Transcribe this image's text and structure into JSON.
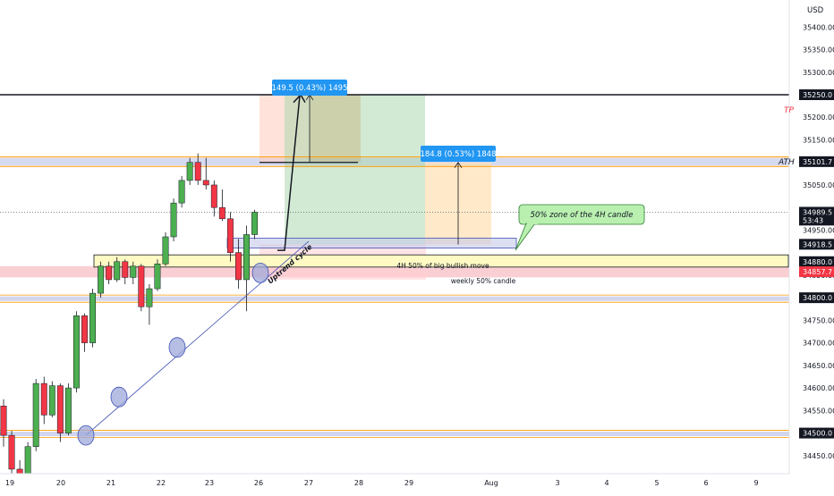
{
  "chart_data": {
    "type": "candlestick",
    "currency": "USD",
    "price_axis": {
      "min": 34410,
      "max": 35460,
      "ticks": [
        35400,
        35350,
        35300,
        35250,
        35200,
        35150,
        35050,
        34950,
        34850,
        34750,
        34700,
        34650,
        34600,
        34550,
        34450
      ],
      "labels": {
        "highlighted": [
          {
            "text": "35250.1",
            "value": 35250.1,
            "color": "#f23645"
          },
          {
            "text": "35250.0",
            "value": 35250.0,
            "color": "#131722"
          },
          {
            "text": "35101.7",
            "value": 35101.7,
            "color": "#131722"
          },
          {
            "text": "34989.5",
            "value": 34989.5,
            "color": "#131722"
          },
          {
            "text": "53:43",
            "value": 34972,
            "color": "#131722"
          },
          {
            "text": "34918.5",
            "value": 34918.5,
            "color": "#131722"
          },
          {
            "text": "34880.0",
            "value": 34880.0,
            "color": "#131722"
          },
          {
            "text": "34857.7",
            "value": 34857.7,
            "color": "#f23645"
          },
          {
            "text": "34800.0",
            "value": 34800.0,
            "color": "#131722"
          },
          {
            "text": "34500.0",
            "value": 34500.0,
            "color": "#131722"
          }
        ]
      }
    },
    "time_axis": {
      "labels": [
        "19",
        "20",
        "21",
        "22",
        "23",
        "26",
        "27",
        "28",
        "29",
        "Aug",
        "3",
        "4",
        "5",
        "6",
        "9"
      ],
      "day_positions": [
        0,
        1,
        2,
        3,
        4,
        5,
        6,
        7,
        8,
        9,
        10,
        11,
        12,
        13,
        14
      ]
    },
    "candles_per_day": 8,
    "candles": [
      {
        "o": 34560,
        "h": 34575,
        "l": 34470,
        "c": 34495
      },
      {
        "o": 34495,
        "h": 34505,
        "l": 34400,
        "c": 34420
      },
      {
        "o": 34420,
        "h": 34440,
        "l": 34380,
        "c": 34395
      },
      {
        "o": 34395,
        "h": 34480,
        "l": 34390,
        "c": 34470
      },
      {
        "o": 34470,
        "h": 34620,
        "l": 34460,
        "c": 34610
      },
      {
        "o": 34610,
        "h": 34625,
        "l": 34520,
        "c": 34540
      },
      {
        "o": 34540,
        "h": 34615,
        "l": 34535,
        "c": 34605
      },
      {
        "o": 34605,
        "h": 34610,
        "l": 34480,
        "c": 34500
      },
      {
        "o": 34500,
        "h": 34610,
        "l": 34495,
        "c": 34600
      },
      {
        "o": 34600,
        "h": 34770,
        "l": 34590,
        "c": 34760
      },
      {
        "o": 34760,
        "h": 34765,
        "l": 34680,
        "c": 34700
      },
      {
        "o": 34700,
        "h": 34820,
        "l": 34690,
        "c": 34810
      },
      {
        "o": 34810,
        "h": 34880,
        "l": 34800,
        "c": 34870
      },
      {
        "o": 34870,
        "h": 34880,
        "l": 34830,
        "c": 34840
      },
      {
        "o": 34840,
        "h": 34890,
        "l": 34835,
        "c": 34880
      },
      {
        "o": 34880,
        "h": 34885,
        "l": 34830,
        "c": 34845
      },
      {
        "o": 34845,
        "h": 34880,
        "l": 34830,
        "c": 34870
      },
      {
        "o": 34870,
        "h": 34875,
        "l": 34770,
        "c": 34780
      },
      {
        "o": 34780,
        "h": 34830,
        "l": 34740,
        "c": 34820
      },
      {
        "o": 34820,
        "h": 34885,
        "l": 34815,
        "c": 34875
      },
      {
        "o": 34875,
        "h": 34945,
        "l": 34870,
        "c": 34935
      },
      {
        "o": 34935,
        "h": 35020,
        "l": 34925,
        "c": 35010
      },
      {
        "o": 35010,
        "h": 35070,
        "l": 35000,
        "c": 35060
      },
      {
        "o": 35060,
        "h": 35110,
        "l": 35050,
        "c": 35100
      },
      {
        "o": 35100,
        "h": 35120,
        "l": 35050,
        "c": 35060
      },
      {
        "o": 35060,
        "h": 35110,
        "l": 35040,
        "c": 35050
      },
      {
        "o": 35050,
        "h": 35060,
        "l": 34980,
        "c": 35000
      },
      {
        "o": 35000,
        "h": 35040,
        "l": 34970,
        "c": 34975
      },
      {
        "o": 34975,
        "h": 34990,
        "l": 34880,
        "c": 34900
      },
      {
        "o": 34900,
        "h": 34930,
        "l": 34820,
        "c": 34840
      },
      {
        "o": 34840,
        "h": 34960,
        "l": 34770,
        "c": 34940
      },
      {
        "o": 34940,
        "h": 34995,
        "l": 34930,
        "c": 34989.5
      }
    ],
    "colors": {
      "up": "#4caf50",
      "down": "#f23645",
      "wick": "#131722"
    }
  },
  "annotations": {
    "tp_label": "TP",
    "ath_label": "ATH",
    "measure_1": "149.5 (0.43%) 1495",
    "measure_2": "184.8 (0.53%) 1848",
    "callout": "50% zone of the 4H candle",
    "zone_4h": "4H 50% of big bullish move",
    "zone_weekly": "weekly 50% candle",
    "trendline_label": "Uptrend cycle"
  },
  "colors": {
    "label_blue": "#2962ff",
    "measure_blue": "#2196f3",
    "green_zone": "#4caf50",
    "orange_zone": "#ff9800",
    "callout_bg": "#b9f0b0",
    "callout_border": "#2e7d32"
  }
}
